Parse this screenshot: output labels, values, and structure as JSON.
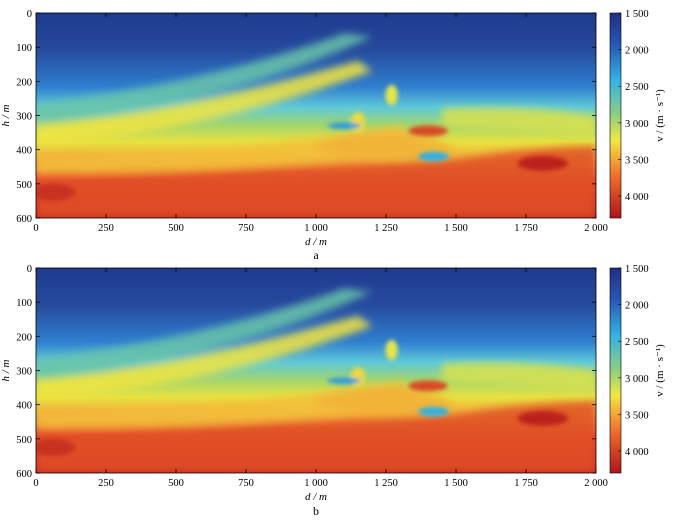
{
  "chart_data": [
    {
      "type": "heatmap",
      "panel_label": "a",
      "xlabel": "d / m",
      "ylabel": "h / m",
      "xlim": [
        0,
        2000
      ],
      "ylim": [
        0,
        600
      ],
      "y_inverted": true,
      "x_ticks": [
        0,
        250,
        500,
        750,
        1000,
        1250,
        1500,
        1750,
        2000
      ],
      "x_tick_labels": [
        "0",
        "250",
        "500",
        "750",
        "1 000",
        "1 250",
        "1 500",
        "1 750",
        "2 000"
      ],
      "y_ticks": [
        0,
        100,
        200,
        300,
        400,
        500,
        600
      ],
      "y_tick_labels": [
        "0",
        "100",
        "200",
        "300",
        "400",
        "500",
        "600"
      ],
      "colorbar": {
        "label": "v / (m · s⁻¹)",
        "range": [
          1500,
          4300
        ],
        "ticks": [
          1500,
          2000,
          2500,
          3000,
          3500,
          4000
        ],
        "tick_labels": [
          "1 500",
          "2 000",
          "2 500",
          "3 000",
          "3 500",
          "4 000"
        ],
        "colormap": "jet"
      },
      "layers": [
        {
          "depth_top": 0,
          "depth_bottom": 250,
          "velocity": 1800
        },
        {
          "depth_top": 250,
          "depth_bottom": 300,
          "velocity": 2600
        },
        {
          "depth_top": 300,
          "depth_bottom": 400,
          "velocity": 3000
        },
        {
          "depth_top": 400,
          "depth_bottom": 450,
          "velocity": 3300
        },
        {
          "depth_top": 450,
          "depth_bottom": 600,
          "velocity": 3900
        }
      ]
    },
    {
      "type": "heatmap",
      "panel_label": "b",
      "xlabel": "d / m",
      "ylabel": "h / m",
      "xlim": [
        0,
        2000
      ],
      "ylim": [
        0,
        600
      ],
      "y_inverted": true,
      "x_ticks": [
        0,
        250,
        500,
        750,
        1000,
        1250,
        1500,
        1750,
        2000
      ],
      "x_tick_labels": [
        "0",
        "250",
        "500",
        "750",
        "1 000",
        "1 250",
        "1 500",
        "1 750",
        "2 000"
      ],
      "y_ticks": [
        0,
        100,
        200,
        300,
        400,
        500,
        600
      ],
      "y_tick_labels": [
        "0",
        "100",
        "200",
        "300",
        "400",
        "500",
        "600"
      ],
      "colorbar": {
        "label": "v / (m · s⁻¹)",
        "range": [
          1500,
          4300
        ],
        "ticks": [
          1500,
          2000,
          2500,
          3000,
          3500,
          4000
        ],
        "tick_labels": [
          "1 500",
          "2 000",
          "2 500",
          "3 000",
          "3 500",
          "4 000"
        ],
        "colormap": "jet"
      },
      "layers": [
        {
          "depth_top": 0,
          "depth_bottom": 250,
          "velocity": 1800
        },
        {
          "depth_top": 250,
          "depth_bottom": 300,
          "velocity": 2600
        },
        {
          "depth_top": 300,
          "depth_bottom": 400,
          "velocity": 3000
        },
        {
          "depth_top": 400,
          "depth_bottom": 450,
          "velocity": 3300
        },
        {
          "depth_top": 450,
          "depth_bottom": 600,
          "velocity": 3900
        }
      ]
    }
  ]
}
